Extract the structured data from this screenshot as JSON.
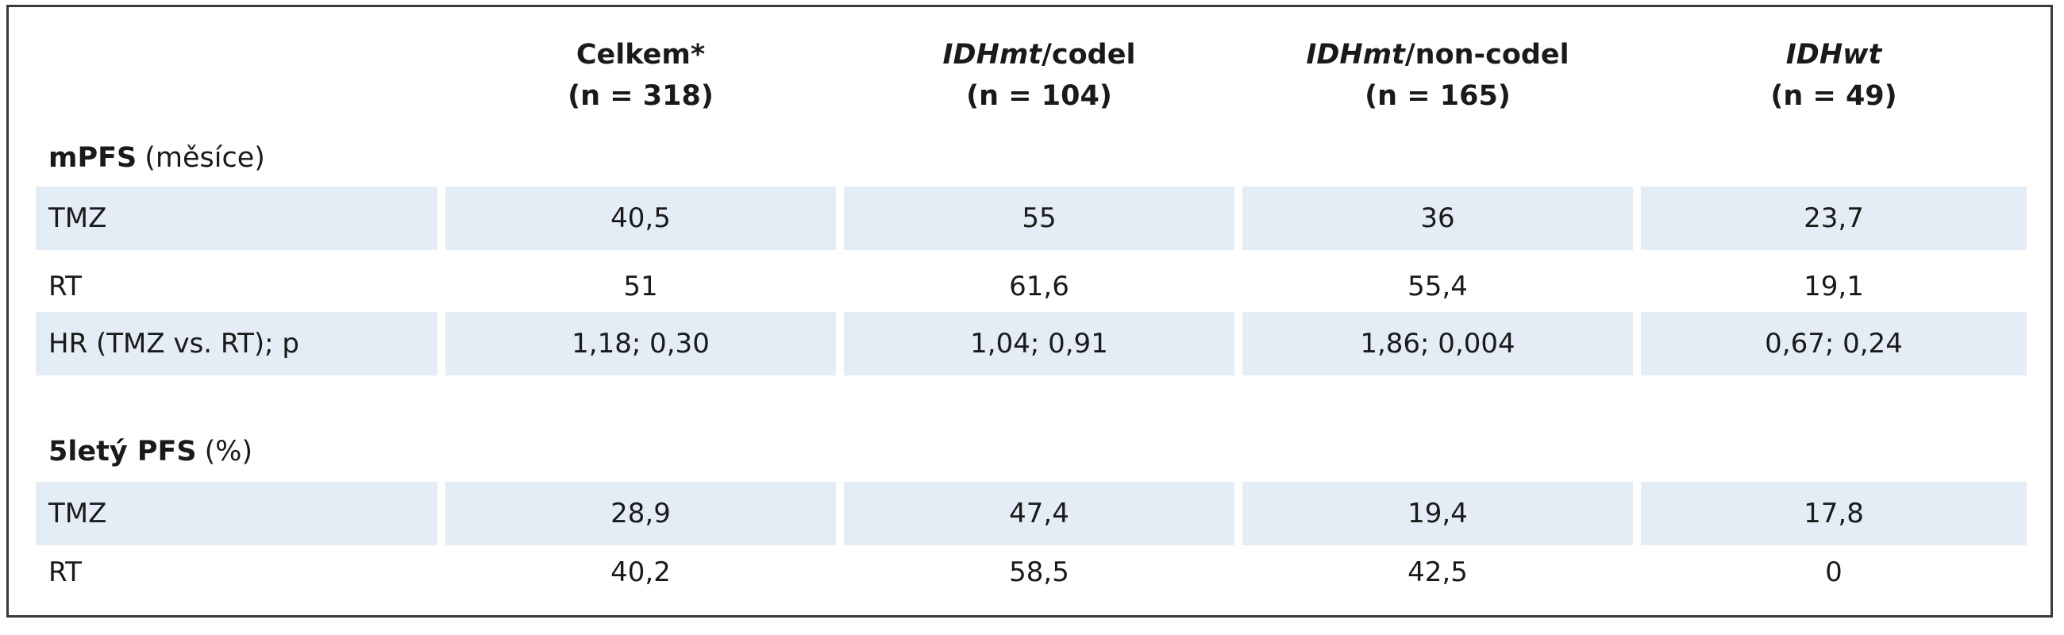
{
  "columns": [
    {
      "pre": "",
      "italic": "",
      "post": "Celkem*",
      "n": "(n = 318)"
    },
    {
      "pre": "",
      "italic": "IDHmt",
      "post": "/codel",
      "n": "(n = 104)"
    },
    {
      "pre": "",
      "italic": "IDHmt",
      "post": "/non-codel",
      "n": "(n = 165)"
    },
    {
      "pre": "",
      "italic": "IDHwt",
      "post": "",
      "n": "(n = 49)"
    }
  ],
  "sections": [
    {
      "title_bold": "mPFS",
      "title_rest": "(měsíce)",
      "rows": [
        {
          "label": "TMZ",
          "values": [
            "40,5",
            "55",
            "36",
            "23,7"
          ]
        },
        {
          "label": "RT",
          "values": [
            "51",
            "61,6",
            "55,4",
            "19,1"
          ]
        },
        {
          "label": "HR (TMZ vs. RT); p",
          "values": [
            "1,18; 0,30",
            "1,04; 0,91",
            "1,86; 0,004",
            "0,67; 0,24"
          ]
        }
      ]
    },
    {
      "title_bold": "5letý PFS",
      "title_rest": "(%)",
      "rows": [
        {
          "label": "TMZ",
          "values": [
            "28,9",
            "47,4",
            "19,4",
            "17,8"
          ]
        },
        {
          "label": "RT",
          "values": [
            "40,2",
            "58,5",
            "42,5",
            "0"
          ]
        }
      ]
    }
  ]
}
